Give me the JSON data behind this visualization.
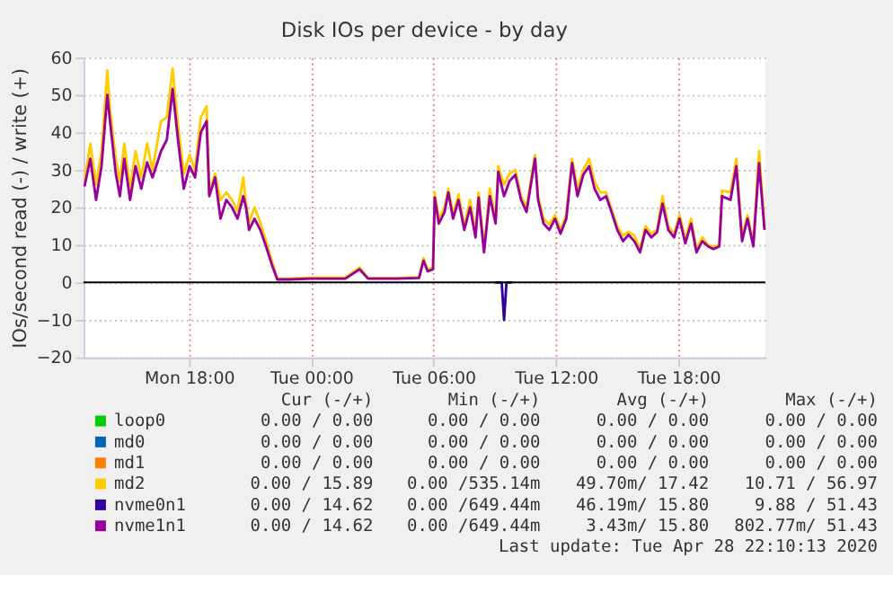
{
  "chart_data": {
    "type": "line",
    "title": "Disk IOs per device - by day",
    "ylabel": "IOs/second read (-) / write (+)",
    "x": [
      "2020-04-27T12:53",
      "2020-04-27T13:10",
      "2020-04-27T13:27",
      "2020-04-27T13:43",
      "2020-04-27T14:00",
      "2020-04-27T14:08",
      "2020-04-27T14:25",
      "2020-04-27T14:37",
      "2020-04-27T14:50",
      "2020-04-27T15:07",
      "2020-04-27T15:23",
      "2020-04-27T15:40",
      "2020-04-27T15:57",
      "2020-04-27T16:13",
      "2020-04-27T16:38",
      "2020-04-27T16:55",
      "2020-04-27T17:12",
      "2020-04-27T17:28",
      "2020-04-27T17:45",
      "2020-04-27T18:02",
      "2020-04-27T18:18",
      "2020-04-27T18:35",
      "2020-04-27T18:52",
      "2020-04-27T19:00",
      "2020-04-27T19:17",
      "2020-04-27T19:33",
      "2020-04-27T19:50",
      "2020-04-27T20:07",
      "2020-04-27T20:23",
      "2020-04-27T20:40",
      "2020-04-27T20:48",
      "2020-04-27T20:57",
      "2020-04-27T21:13",
      "2020-04-27T21:30",
      "2020-04-27T21:47",
      "2020-04-27T22:03",
      "2020-04-27T22:20",
      "2020-04-27T22:53",
      "2020-04-28T00:00",
      "2020-04-28T01:40",
      "2020-04-28T02:22",
      "2020-04-28T02:47",
      "2020-04-28T04:10",
      "2020-04-28T05:17",
      "2020-04-28T05:30",
      "2020-04-28T05:42",
      "2020-04-28T05:58",
      "2020-04-28T06:03",
      "2020-04-28T06:15",
      "2020-04-28T06:32",
      "2020-04-28T06:43",
      "2020-04-28T06:57",
      "2020-04-28T07:13",
      "2020-04-28T07:30",
      "2020-04-28T07:47",
      "2020-04-28T08:03",
      "2020-04-28T08:12",
      "2020-04-28T08:28",
      "2020-04-28T08:45",
      "2020-04-28T09:02",
      "2020-04-28T09:10",
      "2020-04-28T09:27",
      "2020-04-28T09:43",
      "2020-04-28T10:00",
      "2020-04-28T10:17",
      "2020-04-28T10:33",
      "2020-04-28T10:58",
      "2020-04-28T11:07",
      "2020-04-28T11:23",
      "2020-04-28T11:40",
      "2020-04-28T11:57",
      "2020-04-28T12:13",
      "2020-04-28T12:30",
      "2020-04-28T12:47",
      "2020-04-28T13:03",
      "2020-04-28T13:20",
      "2020-04-28T13:37",
      "2020-04-28T13:53",
      "2020-04-28T14:10",
      "2020-04-28T14:27",
      "2020-04-28T14:43",
      "2020-04-28T15:00",
      "2020-04-28T15:17",
      "2020-04-28T15:33",
      "2020-04-28T15:50",
      "2020-04-28T16:07",
      "2020-04-28T16:23",
      "2020-04-28T16:40",
      "2020-04-28T16:57",
      "2020-04-28T17:13",
      "2020-04-28T17:30",
      "2020-04-28T17:47",
      "2020-04-28T18:03",
      "2020-04-28T18:20",
      "2020-04-28T18:37",
      "2020-04-28T18:53",
      "2020-04-28T19:10",
      "2020-04-28T19:27",
      "2020-04-28T19:43",
      "2020-04-28T20:00",
      "2020-04-28T20:08",
      "2020-04-28T20:33",
      "2020-04-28T20:50",
      "2020-04-28T21:07",
      "2020-04-28T21:23",
      "2020-04-28T21:40",
      "2020-04-28T21:57",
      "2020-04-28T22:13"
    ],
    "series": [
      {
        "name": "loop0",
        "color": "#00cc00",
        "values": [
          null,
          null,
          null,
          null,
          null,
          null,
          null,
          null,
          null,
          null,
          null,
          null,
          null,
          null,
          null,
          null,
          null,
          null,
          null,
          null,
          null,
          null,
          null,
          null,
          null,
          null,
          null,
          null,
          null,
          null,
          null,
          null,
          null,
          null,
          null,
          null,
          null,
          null,
          null,
          null,
          null,
          null,
          null,
          null,
          null,
          null,
          null,
          null,
          null,
          null,
          null,
          null,
          null,
          null,
          null,
          null,
          null,
          null,
          null,
          null,
          null,
          null,
          null,
          null,
          null,
          null,
          null,
          null,
          null,
          null,
          null,
          null,
          null,
          null,
          null,
          null,
          null,
          null,
          null,
          null,
          null,
          null,
          null,
          null,
          null,
          null,
          null,
          null,
          null,
          null,
          null,
          null,
          null,
          null,
          null,
          null,
          null,
          null,
          null,
          null,
          null,
          null,
          null,
          null,
          null,
          null,
          null,
          null
        ]
      },
      {
        "name": "md0",
        "color": "#0066b3",
        "values": [
          null,
          null,
          null,
          null,
          null,
          null,
          null,
          null,
          null,
          null,
          null,
          null,
          null,
          null,
          null,
          null,
          null,
          null,
          null,
          null,
          null,
          null,
          null,
          null,
          null,
          null,
          null,
          null,
          null,
          null,
          null,
          null,
          null,
          null,
          null,
          null,
          null,
          null,
          null,
          null,
          null,
          null,
          null,
          null,
          null,
          null,
          null,
          null,
          null,
          null,
          null,
          null,
          null,
          null,
          null,
          null,
          null,
          null,
          null,
          null,
          null,
          null,
          null,
          null,
          null,
          null,
          null,
          null,
          null,
          null,
          null,
          null,
          null,
          null,
          null,
          null,
          null,
          null,
          null,
          null,
          null,
          null,
          null,
          null,
          null,
          null,
          null,
          null,
          null,
          null,
          null,
          null,
          null,
          null,
          null,
          null,
          null,
          null,
          null,
          null,
          null,
          null,
          null,
          null,
          null,
          null,
          null,
          null
        ]
      },
      {
        "name": "md1",
        "color": "#ff8000",
        "values": [
          null,
          null,
          null,
          null,
          null,
          null,
          null,
          null,
          null,
          null,
          null,
          null,
          null,
          null,
          null,
          null,
          null,
          null,
          null,
          null,
          null,
          null,
          null,
          null,
          null,
          null,
          null,
          null,
          null,
          null,
          null,
          null,
          null,
          null,
          null,
          null,
          null,
          null,
          null,
          null,
          null,
          null,
          null,
          null,
          null,
          null,
          null,
          null,
          null,
          null,
          null,
          null,
          null,
          null,
          null,
          null,
          null,
          null,
          null,
          null,
          null,
          null,
          null,
          null,
          null,
          null,
          null,
          null,
          null,
          null,
          null,
          null,
          null,
          null,
          null,
          null,
          null,
          null,
          null,
          null,
          null,
          null,
          null,
          null,
          null,
          null,
          null,
          null,
          null,
          null,
          null,
          null,
          null,
          null,
          null,
          null,
          null,
          null,
          null,
          null,
          null,
          null,
          null,
          null,
          null,
          null,
          null,
          null
        ]
      },
      {
        "name": "md2",
        "color": "#ffcc00",
        "values": [
          27,
          37,
          26,
          35,
          56.5,
          46,
          33,
          27,
          37,
          25,
          35,
          28,
          37,
          30,
          43,
          44,
          57,
          42,
          29,
          34,
          30,
          44,
          47,
          24,
          29,
          22,
          24,
          22,
          19,
          28,
          21,
          16,
          20,
          16,
          11,
          6,
          1,
          1,
          1.3,
          1.3,
          4,
          1.2,
          1.2,
          1.4,
          6.5,
          3.5,
          4,
          24,
          17,
          20,
          25,
          18,
          23.5,
          15,
          22,
          13,
          24,
          9,
          25,
          17,
          31,
          26,
          29,
          30,
          23,
          20,
          34,
          23,
          17,
          15.5,
          18,
          14,
          18,
          33,
          25,
          30,
          33,
          27,
          24,
          24,
          19.5,
          15,
          12.5,
          13.5,
          12.5,
          9,
          15,
          13,
          14,
          23,
          15,
          13,
          18,
          11.5,
          17,
          9,
          12,
          10,
          9.5,
          10,
          24.5,
          24,
          33,
          12,
          18,
          10.5,
          35,
          15
        ]
      },
      {
        "name": "nvme0n1",
        "color": "#330099",
        "x": [
          "2020-04-28T09:00",
          "2020-04-28T09:20",
          "2020-04-28T09:27",
          "2020-04-28T09:34",
          "2020-04-28T09:50"
        ],
        "values": [
          0,
          0,
          -10,
          0,
          0
        ]
      },
      {
        "name": "nvme1n1",
        "color": "#990099",
        "values": [
          25.6,
          33,
          22,
          31,
          50,
          43,
          29,
          23,
          33,
          22,
          31,
          25,
          32,
          28,
          35,
          38,
          51.6,
          38,
          25,
          31,
          28,
          40,
          43,
          23,
          28,
          17,
          22,
          20,
          17,
          23,
          20,
          14,
          17,
          14,
          9.6,
          5,
          0.8,
          0.8,
          1,
          1,
          3.5,
          1,
          1,
          1.2,
          5.8,
          3,
          3.5,
          22.6,
          15.7,
          18.8,
          24,
          17,
          22,
          14,
          20,
          12,
          22.6,
          8,
          23,
          15.7,
          29.5,
          23,
          27,
          28.7,
          22,
          18.8,
          33,
          22,
          15.7,
          14,
          17,
          13,
          17,
          31.8,
          23,
          28.7,
          31,
          25,
          22,
          23,
          18.8,
          14,
          11,
          12.7,
          11,
          8,
          14,
          12,
          13.4,
          21,
          14,
          12,
          17,
          10.4,
          15.7,
          8,
          11,
          9.6,
          8.9,
          9.6,
          23,
          22,
          31,
          11,
          17,
          9.6,
          31.8,
          14
        ]
      }
    ],
    "xlim": [
      "2020-04-27T12:50",
      "2020-04-28T22:15"
    ],
    "xticks": [
      {
        "value": "2020-04-27T18:00",
        "label": "Mon 18:00"
      },
      {
        "value": "2020-04-28T00:00",
        "label": "Tue 00:00"
      },
      {
        "value": "2020-04-28T06:00",
        "label": "Tue 06:00"
      },
      {
        "value": "2020-04-28T12:00",
        "label": "Tue 12:00"
      },
      {
        "value": "2020-04-28T18:00",
        "label": "Tue 18:00"
      }
    ],
    "ylim": [
      -20,
      60
    ],
    "yticks": [
      -20,
      -10,
      0,
      10,
      20,
      30,
      40,
      50,
      60
    ],
    "ref_lines": [
      {
        "axis": "y",
        "value": 0,
        "color": "#000000"
      }
    ],
    "grid": true,
    "legend": "bottom",
    "marker": "none",
    "line_style": "solid",
    "annotations": [
      "Cur (-/+)",
      "Min (-/+)",
      "Avg (-/+)",
      "Max (-/+)",
      "0.00 /  0.00",
      "0.00 /  0.00",
      "0.00 /  0.00",
      "0.00 /  0.00",
      "0.00 /  0.00",
      "0.00 /  0.00",
      "0.00 /  0.00",
      "0.00 /  0.00",
      "0.00 /  0.00",
      "0.00 /  0.00",
      "0.00 /  0.00",
      "0.00 /  0.00",
      "0.00 / 15.89",
      "0.00 /535.14m",
      "49.70m/ 17.42",
      "10.71 / 56.97",
      "0.00 / 14.62",
      "0.00 /649.44m",
      "46.19m/ 15.80",
      "9.88 / 51.43",
      "0.00 / 14.62",
      "0.00 /649.44m",
      "3.43m/ 15.80",
      "802.77m/ 51.43",
      "Last update: Tue Apr 28 22:10:13 2020"
    ]
  }
}
